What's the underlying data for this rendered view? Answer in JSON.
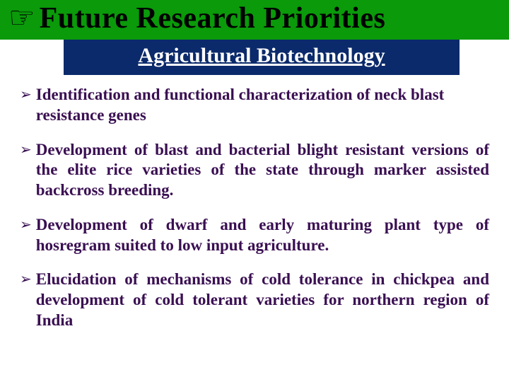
{
  "colors": {
    "title_bg": "#0a9a0a",
    "title_fg": "#000000",
    "subtitle_bg": "#0b2a6b",
    "subtitle_fg": "#ffffff",
    "bullet_marker": "#3a0f52",
    "bullet_text": "#3a0f52",
    "page_bg": "#ffffff",
    "hand_icon": "#000000"
  },
  "typography": {
    "title_fontsize": 42,
    "subtitle_fontsize": 30,
    "bullet_fontsize": 23,
    "bullet_line_height": 1.25,
    "font_family": "Times New Roman, Times, serif"
  },
  "title": {
    "icon": "☞",
    "text": "Future Research Priorities"
  },
  "subtitle": {
    "text": "Agricultural Biotechnology"
  },
  "bullets": {
    "marker": "➢",
    "items": [
      {
        "text": "Identification and functional characterization of neck blast resistance genes",
        "justify": false
      },
      {
        "text": "Development of blast and bacterial blight resistant versions of the elite rice varieties of the state through marker assisted backcross breeding.",
        "justify": true
      },
      {
        "text": "Development of dwarf and early maturing plant type of hosregram suited to low input agriculture.",
        "justify": true
      },
      {
        "text": "Elucidation of mechanisms of cold tolerance in chickpea and development of cold tolerant varieties for northern region of India",
        "justify": true
      }
    ]
  }
}
